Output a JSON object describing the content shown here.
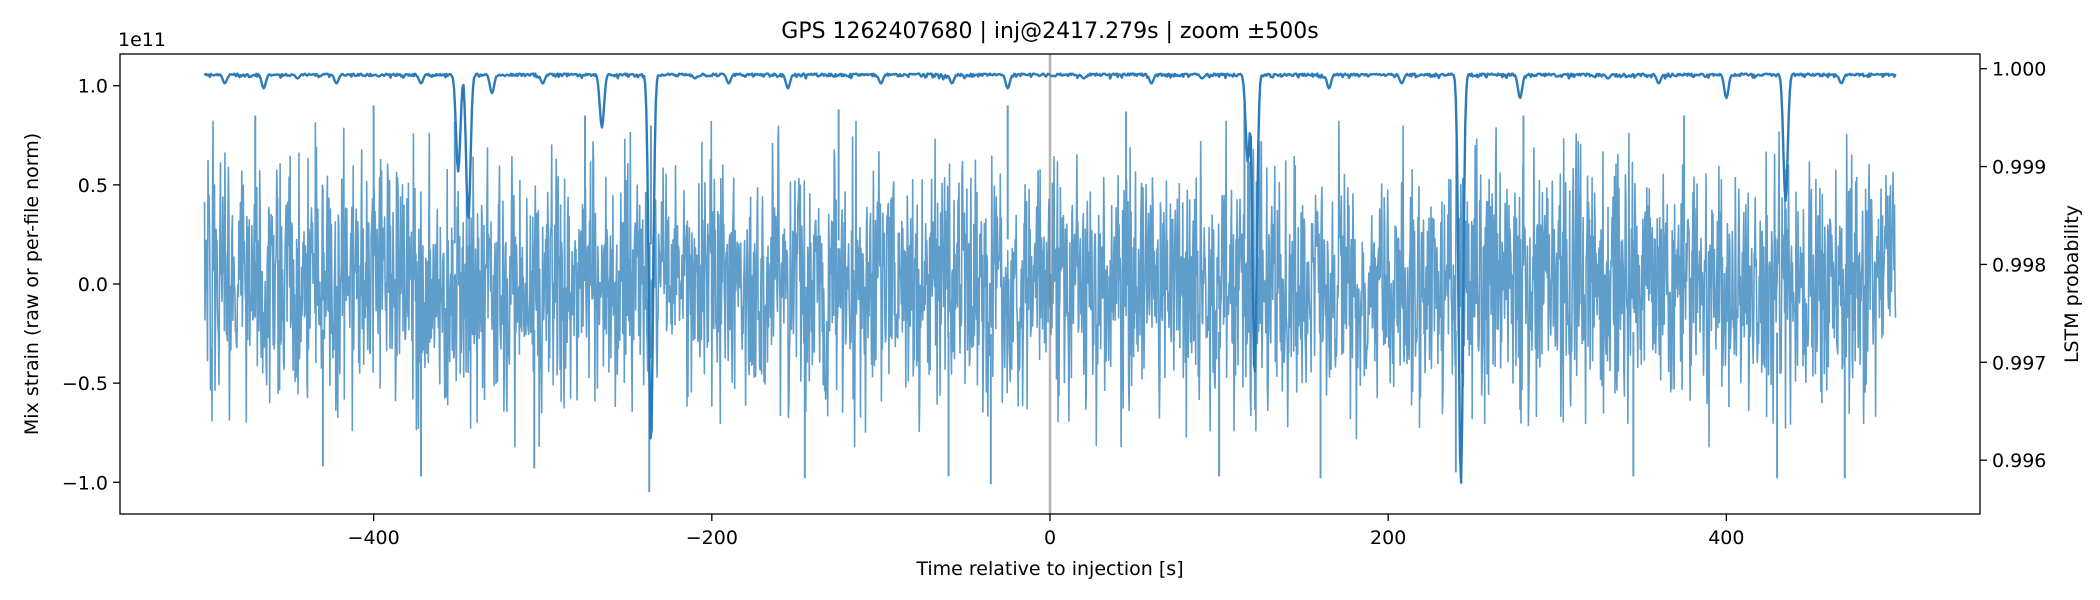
{
  "chart_data": {
    "type": "line",
    "title": "GPS 1262407680 | inj@2417.279s | zoom ±500s",
    "xlabel": "Time relative to injection [s]",
    "ylabel_left": "Mix strain (raw or per-file norm)",
    "ylabel_right": "LSTM probability",
    "left_offset_label": "1e11",
    "xlim": [
      -550,
      550
    ],
    "ylim_left": [
      -1.16,
      1.16
    ],
    "ylim_right": [
      0.99545,
      1.00015
    ],
    "x_ticks": [
      -400,
      -200,
      0,
      200,
      400
    ],
    "x_tick_labels": [
      "−400",
      "−200",
      "0",
      "200",
      "400"
    ],
    "y_left_ticks": [
      -1.0,
      -0.5,
      0.0,
      0.5,
      1.0
    ],
    "y_left_tick_labels": [
      "−1.0",
      "−0.5",
      "0.0",
      "0.5",
      "1.0"
    ],
    "y_right_ticks": [
      0.996,
      0.997,
      0.998,
      0.999,
      1.0
    ],
    "y_right_tick_labels": [
      "0.996",
      "0.997",
      "0.998",
      "0.999",
      "1.000"
    ],
    "injection_marker_x": 0,
    "series": [
      {
        "name": "Mix strain",
        "axis": "left",
        "color": "#5f9ecb",
        "x_range": [
          -500,
          500
        ],
        "typical_amplitude": [
          -0.72,
          0.72
        ],
        "envelope_peaks": [
          {
            "x": -470,
            "y": 0.85
          },
          {
            "x": -430,
            "y": -0.92
          },
          {
            "x": -400,
            "y": 0.9
          },
          {
            "x": -372,
            "y": -0.97
          },
          {
            "x": -352,
            "y": 0.82
          },
          {
            "x": -305,
            "y": -0.93
          },
          {
            "x": -275,
            "y": 0.85
          },
          {
            "x": -237,
            "y": -1.05
          },
          {
            "x": -236,
            "y": 0.8
          },
          {
            "x": -145,
            "y": -0.98
          },
          {
            "x": -125,
            "y": 0.88
          },
          {
            "x": -60,
            "y": -0.97
          },
          {
            "x": -35,
            "y": -1.01
          },
          {
            "x": -25,
            "y": 0.9
          },
          {
            "x": 45,
            "y": 0.87
          },
          {
            "x": 100,
            "y": -0.97
          },
          {
            "x": 115,
            "y": 0.9
          },
          {
            "x": 160,
            "y": -0.98
          },
          {
            "x": 240,
            "y": -0.95
          },
          {
            "x": 280,
            "y": 0.85
          },
          {
            "x": 345,
            "y": -0.97
          },
          {
            "x": 375,
            "y": 0.85
          },
          {
            "x": 430,
            "y": -0.98
          },
          {
            "x": 470,
            "y": -0.98
          }
        ]
      },
      {
        "name": "LSTM probability",
        "axis": "right",
        "color": "#2b7bb9",
        "x_range": [
          -500,
          500
        ],
        "baseline": 0.99995,
        "dips": [
          {
            "x": -488,
            "y": 0.99985
          },
          {
            "x": -465,
            "y": 0.9998
          },
          {
            "x": -445,
            "y": 0.9999
          },
          {
            "x": -422,
            "y": 0.99985
          },
          {
            "x": -397,
            "y": 0.99992
          },
          {
            "x": -372,
            "y": 0.99985
          },
          {
            "x": -350,
            "y": 0.99895
          },
          {
            "x": -344,
            "y": 0.99845
          },
          {
            "x": -330,
            "y": 0.99975
          },
          {
            "x": -300,
            "y": 0.99985
          },
          {
            "x": -265,
            "y": 0.9994
          },
          {
            "x": -236,
            "y": 0.99615
          },
          {
            "x": -210,
            "y": 0.9999
          },
          {
            "x": -190,
            "y": 0.99985
          },
          {
            "x": -155,
            "y": 0.9998
          },
          {
            "x": -100,
            "y": 0.99985
          },
          {
            "x": -58,
            "y": 0.99985
          },
          {
            "x": -25,
            "y": 0.9998
          },
          {
            "x": 20,
            "y": 0.9999
          },
          {
            "x": 60,
            "y": 0.99985
          },
          {
            "x": 90,
            "y": 0.9999
          },
          {
            "x": 117,
            "y": 0.99905
          },
          {
            "x": 121,
            "y": 0.99685
          },
          {
            "x": 165,
            "y": 0.9998
          },
          {
            "x": 208,
            "y": 0.99985
          },
          {
            "x": 243,
            "y": 0.99575
          },
          {
            "x": 278,
            "y": 0.9997
          },
          {
            "x": 330,
            "y": 0.9999
          },
          {
            "x": 360,
            "y": 0.99985
          },
          {
            "x": 400,
            "y": 0.9997
          },
          {
            "x": 435,
            "y": 0.99865
          },
          {
            "x": 468,
            "y": 0.99985
          }
        ]
      }
    ]
  }
}
